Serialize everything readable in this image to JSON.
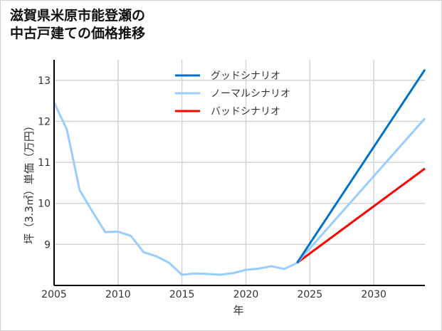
{
  "chart_data": {
    "type": "line",
    "title_lines": [
      "滋賀県米原市能登瀬の",
      "中古戸建ての価格推移"
    ],
    "xlabel": "年",
    "ylabel": "坪（3.3㎡）単価（万円）",
    "xlim": [
      2005,
      2034
    ],
    "ylim": [
      8.0,
      13.5
    ],
    "xticks": [
      2005,
      2010,
      2015,
      2020,
      2025,
      2030
    ],
    "yticks": [
      9,
      10,
      11,
      12,
      13
    ],
    "grid": true,
    "legend_position": "top-center",
    "history": {
      "x": [
        2005,
        2006,
        2007,
        2008,
        2009,
        2010,
        2011,
        2012,
        2013,
        2014,
        2015,
        2016,
        2017,
        2018,
        2019,
        2020,
        2021,
        2022,
        2023,
        2024
      ],
      "y": [
        12.46,
        11.8,
        10.32,
        9.8,
        9.3,
        9.31,
        9.21,
        8.81,
        8.71,
        8.55,
        8.26,
        8.29,
        8.28,
        8.26,
        8.3,
        8.38,
        8.41,
        8.47,
        8.4,
        8.55
      ],
      "color": "#99ccff"
    },
    "series": [
      {
        "name": "グッドシナリオ",
        "color": "#0072c6",
        "x": [
          2024,
          2034
        ],
        "y": [
          8.55,
          13.26
        ]
      },
      {
        "name": "ノーマルシナリオ",
        "color": "#99ccff",
        "x": [
          2024,
          2034
        ],
        "y": [
          8.55,
          12.07
        ]
      },
      {
        "name": "バッドシナリオ",
        "color": "#ff0000",
        "x": [
          2024,
          2034
        ],
        "y": [
          8.55,
          10.85
        ]
      }
    ]
  }
}
